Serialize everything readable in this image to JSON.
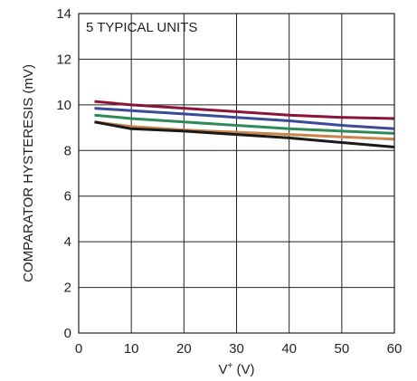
{
  "chart_data": {
    "type": "line",
    "xlabel": "V",
    "xlabel_sup": "+",
    "xlabel_unit": " (V)",
    "ylabel": "COMPARATOR HYSTERESIS (mV)",
    "annotation": "5 TYPICAL UNITS",
    "xlim": [
      0,
      60
    ],
    "ylim": [
      0,
      14
    ],
    "xticks": [
      0,
      10,
      20,
      30,
      40,
      50,
      60
    ],
    "yticks": [
      0,
      2,
      4,
      6,
      8,
      10,
      12,
      14
    ],
    "grid": true,
    "series": [
      {
        "color": "#8b1538",
        "x": [
          3,
          10,
          20,
          30,
          40,
          50,
          60
        ],
        "values": [
          10.15,
          10.0,
          9.85,
          9.7,
          9.55,
          9.45,
          9.4
        ]
      },
      {
        "color": "#3c4a9c",
        "x": [
          3,
          10,
          20,
          30,
          40,
          50,
          60
        ],
        "values": [
          9.85,
          9.75,
          9.6,
          9.45,
          9.3,
          9.1,
          8.95
        ]
      },
      {
        "color": "#2e8b57",
        "x": [
          3,
          10,
          20,
          30,
          40,
          50,
          60
        ],
        "values": [
          9.55,
          9.4,
          9.25,
          9.1,
          8.95,
          8.85,
          8.75
        ]
      },
      {
        "color": "#c8844a",
        "x": [
          3,
          10,
          20,
          30,
          40,
          50,
          60
        ],
        "values": [
          9.25,
          9.05,
          8.9,
          8.8,
          8.7,
          8.6,
          8.5
        ]
      },
      {
        "color": "#1a1a1a",
        "x": [
          3,
          10,
          20,
          30,
          40,
          50,
          60
        ],
        "values": [
          9.25,
          8.95,
          8.85,
          8.7,
          8.55,
          8.35,
          8.15
        ]
      }
    ]
  }
}
